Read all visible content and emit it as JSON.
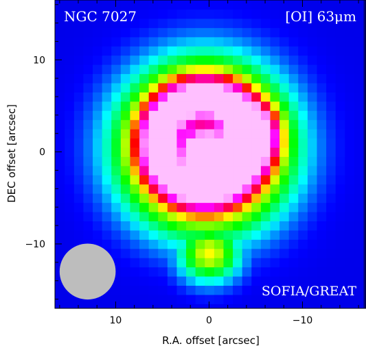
{
  "chart_data": {
    "type": "heatmap",
    "title_left": "NGC 7027",
    "title_right": "[OI] 63μm",
    "instrument": "SOFIA/GREAT",
    "xlabel": "R.A. offset [arcsec]",
    "ylabel": "DEC offset [arcsec]",
    "xlim": [
      16.5,
      -16.8
    ],
    "ylim": [
      -17,
      16.5
    ],
    "xticks": [
      10,
      0,
      -10
    ],
    "yticks": [
      10,
      0,
      -10
    ],
    "x_minor_step": 2,
    "y_minor_step": 2,
    "colormap": [
      "#00007a",
      "#0000ff",
      "#00ffff",
      "#00ff00",
      "#ffff00",
      "#ff0000",
      "#ff00ff",
      "#ffbfff"
    ],
    "beam": {
      "x": 13,
      "y": -13,
      "diameter": 6,
      "color": "#bdbdbd"
    },
    "grid": false,
    "pixel_size": 1,
    "intensity_model": {
      "ring_center": [
        0.5,
        1
      ],
      "ring_radius": 5,
      "ring_width": 3,
      "ring_peak": 0.95,
      "halo_center": [
        0.5,
        0.5
      ],
      "halo_radius": 9.5,
      "halo_width": 1.8,
      "tail_center": [
        0,
        -11
      ],
      "tail_sigma": [
        2.4,
        2.2
      ],
      "tail_peak": 0.45,
      "core_center": [
        0.5,
        0
      ],
      "core_sigma": 1.5,
      "core_peak": 0.72,
      "hotspot_center": [
        -4.5,
        2
      ],
      "hotspot_sigma": 1.8,
      "hotspot_peak": 1.0,
      "background": 0.12
    }
  }
}
